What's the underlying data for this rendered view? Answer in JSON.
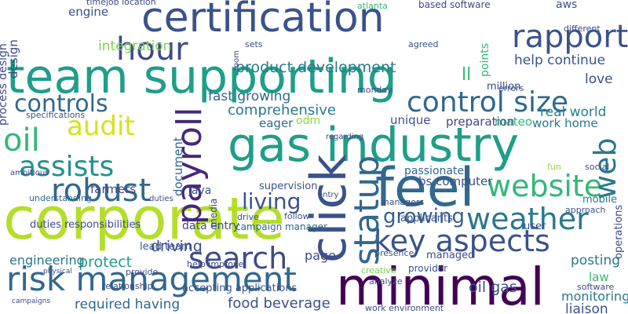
{
  "words": [
    "team supporting",
    "certification",
    "corporate",
    "gas industry",
    "feel",
    "minimal",
    "click",
    "risk management",
    "search",
    "robust",
    "payroll",
    "audit",
    "oil",
    "assists",
    "controls",
    "hour",
    "rapport",
    "control size",
    "website",
    "weather",
    "key aspects",
    "growing",
    "statup",
    "living",
    "web",
    "product development",
    "integration",
    "comprehensive",
    "fast growing",
    "help continue",
    "points",
    "love",
    "real world",
    "work home",
    "mateo",
    "unique",
    "preparation",
    "eager",
    "farmers",
    "document",
    "java",
    "data entry",
    "campaign manager",
    "driving",
    "protect",
    "engineering",
    "required having",
    "food beverage",
    "page",
    "lead team",
    "accepting applications",
    "relationship",
    "bs computer",
    "passionate",
    "posting",
    "oil gas",
    "monitoring",
    "liaison",
    "law",
    "mobile",
    "engine",
    "design",
    "process design",
    "duties responsibilities",
    "understanding",
    "ambitious",
    "specifications",
    "ll",
    "million",
    "aws",
    "based software",
    "atlanta",
    "timejob location",
    "supervision",
    "media",
    "odm",
    "monday",
    "errors",
    "managers",
    "applicants",
    "provider",
    "managed",
    "presence",
    "creative",
    "analyze",
    "work environment",
    "sets",
    "agreed",
    "different",
    "approach",
    "social",
    "fun",
    "follow",
    "help improve",
    "provide",
    "physical",
    "campaigns",
    "user",
    "software",
    "operations",
    "regarding",
    "entry",
    "drive",
    "room",
    "duties"
  ]
}
